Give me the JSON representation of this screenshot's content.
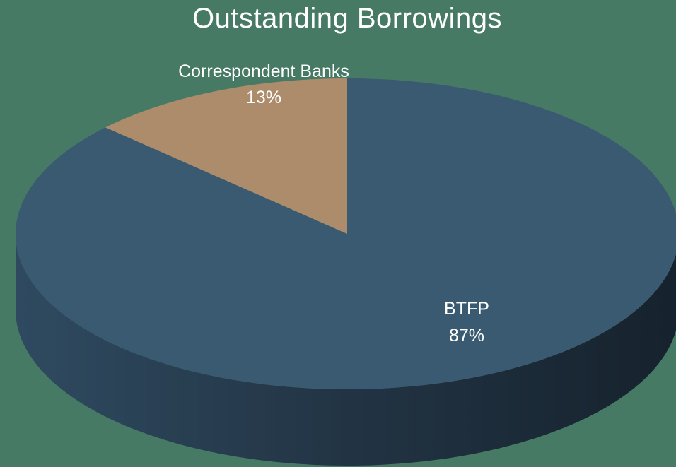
{
  "chart_data": {
    "type": "pie",
    "title": "Outstanding Borrowings",
    "slices": [
      {
        "label": "BTFP",
        "value": 87,
        "display": "87%",
        "color": "#3a5a72",
        "side_color": "#27394a"
      },
      {
        "label": "Correspondent Banks",
        "value": 13,
        "display": "13%",
        "color": "#ad8c6b",
        "side_color": "#7a6047"
      }
    ],
    "start_angle": "12 o'clock",
    "direction": "clockwise",
    "style": "3d"
  },
  "colors": {
    "background": "#467a64"
  }
}
